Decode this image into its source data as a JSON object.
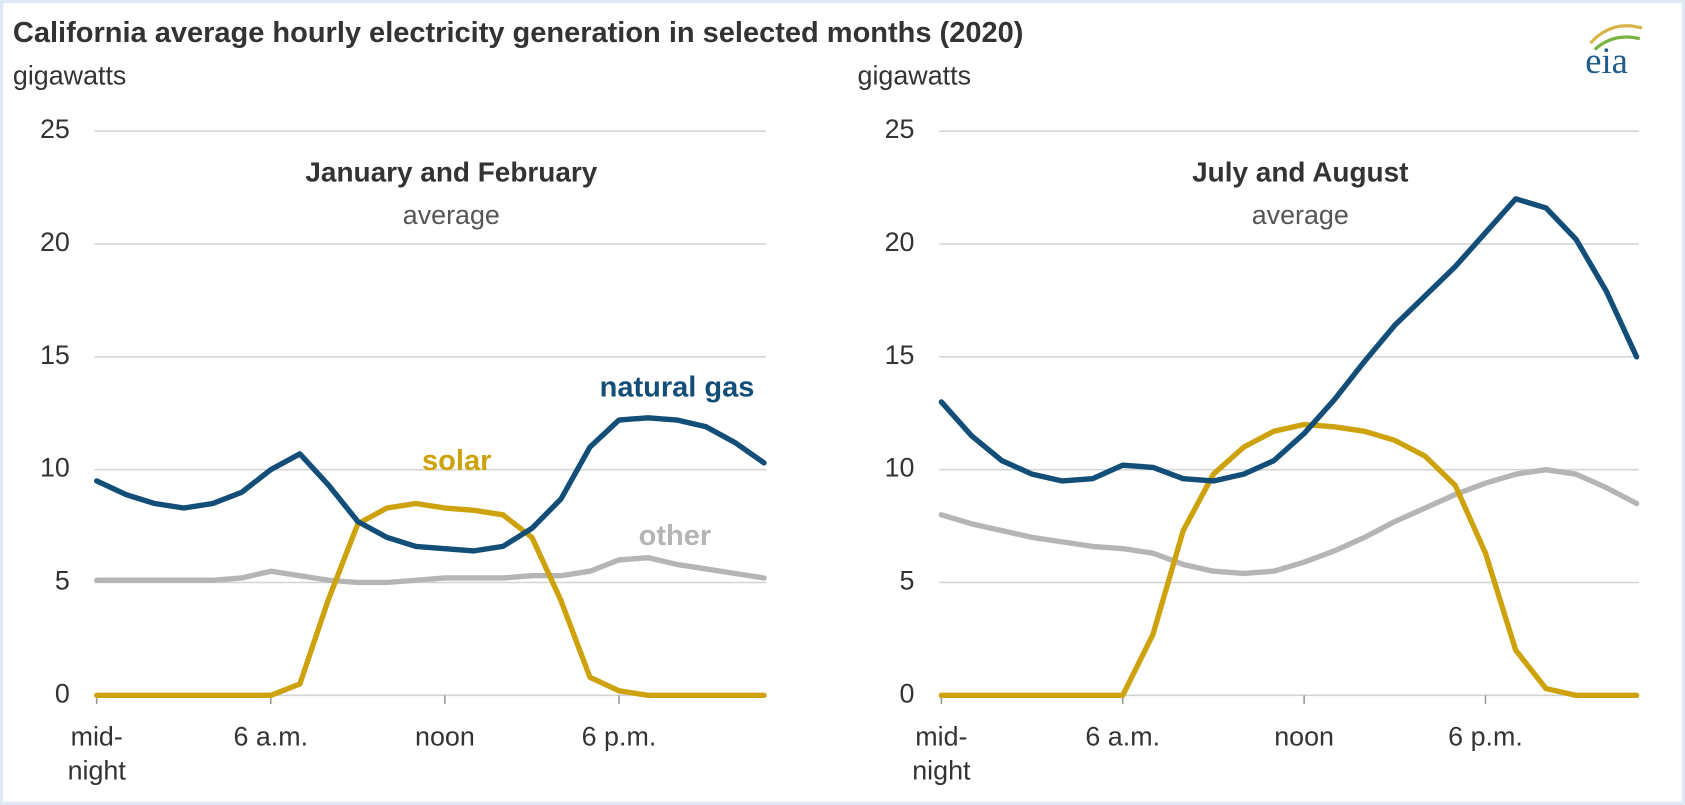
{
  "title": "California average hourly electricity generation in selected months (2020)",
  "logo": "eia",
  "chart_data": [
    {
      "type": "line",
      "title": "January and February",
      "subtitle": "average",
      "ylabel": "gigawatts",
      "x": [
        0,
        1,
        2,
        3,
        4,
        5,
        6,
        7,
        8,
        9,
        10,
        11,
        12,
        13,
        14,
        15,
        16,
        17,
        18,
        19,
        20,
        21,
        22,
        23
      ],
      "xlim": [
        0,
        23
      ],
      "xticks": [
        {
          "value": 0,
          "label": "mid-\nnight"
        },
        {
          "value": 6,
          "label": "6 a.m."
        },
        {
          "value": 12,
          "label": "noon"
        },
        {
          "value": 18,
          "label": "6 p.m."
        }
      ],
      "ylim": [
        0,
        25
      ],
      "yticks": [
        0,
        5,
        10,
        15,
        20,
        25
      ],
      "grid": true,
      "series": [
        {
          "name": "natural gas",
          "color": "#124e78",
          "values": [
            9.5,
            8.9,
            8.5,
            8.3,
            8.5,
            9.0,
            10.0,
            10.7,
            9.3,
            7.7,
            7.0,
            6.6,
            6.5,
            6.4,
            6.6,
            7.4,
            8.7,
            11.0,
            12.2,
            12.3,
            12.2,
            11.9,
            11.2,
            10.3
          ]
        },
        {
          "name": "solar",
          "color": "#cda20c",
          "values": [
            0,
            0,
            0,
            0,
            0,
            0,
            0,
            0.5,
            4.3,
            7.6,
            8.3,
            8.5,
            8.3,
            8.2,
            8.0,
            7.0,
            4.2,
            0.8,
            0.2,
            0,
            0,
            0,
            0,
            0
          ]
        },
        {
          "name": "other",
          "color": "#b5b5b5",
          "values": [
            5.1,
            5.1,
            5.1,
            5.1,
            5.1,
            5.2,
            5.5,
            5.3,
            5.1,
            5.0,
            5.0,
            5.1,
            5.2,
            5.2,
            5.2,
            5.3,
            5.3,
            5.5,
            6.0,
            6.1,
            5.8,
            5.6,
            5.4,
            5.2
          ]
        }
      ]
    },
    {
      "type": "line",
      "title": "July and August",
      "subtitle": "average",
      "ylabel": "gigawatts",
      "x": [
        0,
        1,
        2,
        3,
        4,
        5,
        6,
        7,
        8,
        9,
        10,
        11,
        12,
        13,
        14,
        15,
        16,
        17,
        18,
        19,
        20,
        21,
        22,
        23
      ],
      "xlim": [
        0,
        23
      ],
      "xticks": [
        {
          "value": 0,
          "label": "mid-\nnight"
        },
        {
          "value": 6,
          "label": "6 a.m."
        },
        {
          "value": 12,
          "label": "noon"
        },
        {
          "value": 18,
          "label": "6 p.m."
        }
      ],
      "ylim": [
        0,
        25
      ],
      "yticks": [
        0,
        5,
        10,
        15,
        20,
        25
      ],
      "grid": true,
      "series": [
        {
          "color": "#124e78",
          "values": [
            13.0,
            11.5,
            10.4,
            9.8,
            9.5,
            9.6,
            10.2,
            10.1,
            9.6,
            9.5,
            9.8,
            10.4,
            11.6,
            13.1,
            14.8,
            16.4,
            17.7,
            19.0,
            20.5,
            22.0,
            21.6,
            20.2,
            17.9,
            15.0
          ]
        },
        {
          "color": "#cda20c",
          "values": [
            0,
            0,
            0,
            0,
            0,
            0,
            0,
            2.7,
            7.3,
            9.8,
            11.0,
            11.7,
            12.0,
            11.9,
            11.7,
            11.3,
            10.6,
            9.3,
            6.3,
            2.0,
            0.3,
            0,
            0,
            0
          ]
        },
        {
          "color": "#b5b5b5",
          "values": [
            8.0,
            7.6,
            7.3,
            7.0,
            6.8,
            6.6,
            6.5,
            6.3,
            5.8,
            5.5,
            5.4,
            5.5,
            5.9,
            6.4,
            7.0,
            7.7,
            8.3,
            8.9,
            9.4,
            9.8,
            10.0,
            9.8,
            9.2,
            8.5
          ]
        }
      ]
    }
  ]
}
